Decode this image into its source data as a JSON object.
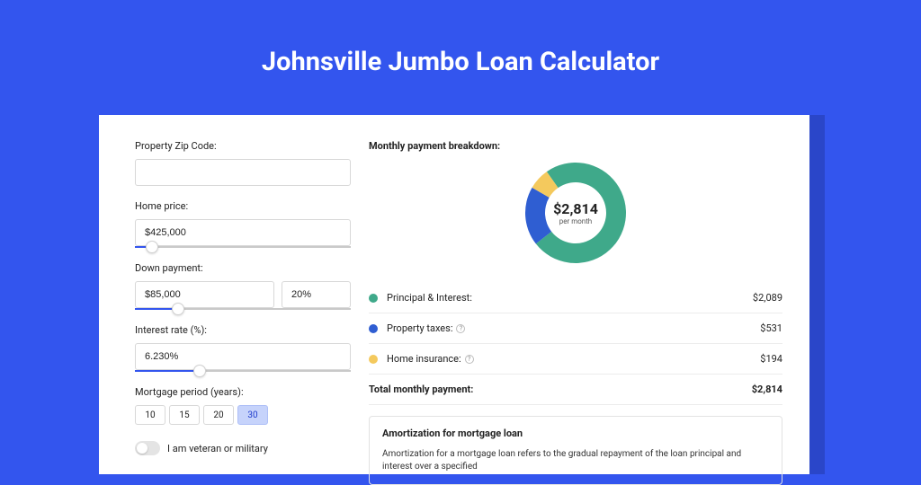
{
  "page": {
    "title": "Johnsville Jumbo Loan Calculator"
  },
  "form": {
    "zip": {
      "label": "Property Zip Code:",
      "value": ""
    },
    "home_price": {
      "label": "Home price:",
      "value": "$425,000",
      "slider_pct": 8
    },
    "down_payment": {
      "label": "Down payment:",
      "amount": "$85,000",
      "pct": "20%",
      "slider_pct": 20
    },
    "interest": {
      "label": "Interest rate (%):",
      "value": "6.230%",
      "slider_pct": 30
    },
    "period": {
      "label": "Mortgage period (years):",
      "options": [
        "10",
        "15",
        "20",
        "30"
      ],
      "active": "30"
    },
    "veteran": {
      "label": "I am veteran or military",
      "on": false
    }
  },
  "breakdown": {
    "title": "Monthly payment breakdown:",
    "center_amount": "$2,814",
    "center_sub": "per month",
    "donut": {
      "size": 120,
      "inner_radius": 34,
      "outer_radius": 56,
      "segments": [
        {
          "key": "pi",
          "pct": 74.2,
          "color": "#3fa98a"
        },
        {
          "key": "tax",
          "pct": 18.9,
          "color": "#2f5ed2"
        },
        {
          "key": "ins",
          "pct": 6.9,
          "color": "#f4c95d"
        }
      ],
      "start_angle": -125
    },
    "items": [
      {
        "label": "Principal & Interest:",
        "value": "$2,089",
        "color": "#3fa98a",
        "info": false
      },
      {
        "label": "Property taxes:",
        "value": "$531",
        "color": "#2f5ed2",
        "info": true
      },
      {
        "label": "Home insurance:",
        "value": "$194",
        "color": "#f4c95d",
        "info": true
      }
    ],
    "total": {
      "label": "Total monthly payment:",
      "value": "$2,814"
    }
  },
  "amortization": {
    "title": "Amortization for mortgage loan",
    "text": "Amortization for a mortgage loan refers to the gradual repayment of the loan principal and interest over a specified"
  }
}
